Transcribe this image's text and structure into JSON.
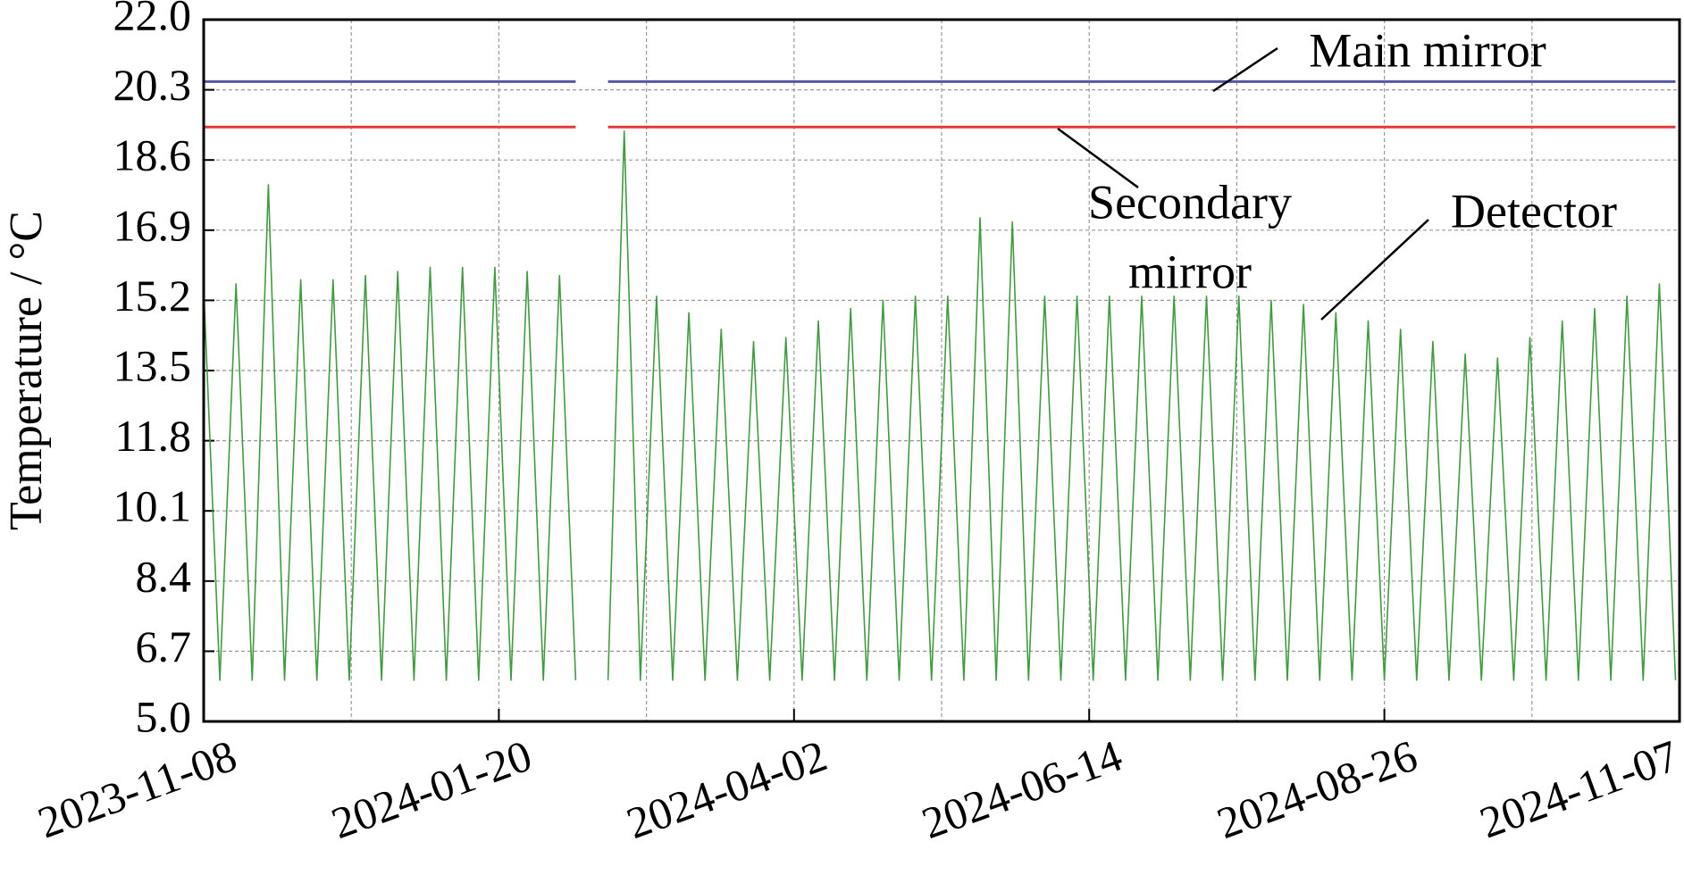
{
  "chart_data": {
    "type": "line",
    "ylabel": "Temperature / °C",
    "x": [
      "2023-11-08",
      "2023-11-12",
      "2023-11-16",
      "2023-11-20",
      "2023-11-24",
      "2023-11-28",
      "2023-12-02",
      "2023-12-06",
      "2023-12-10",
      "2023-12-14",
      "2023-12-18",
      "2023-12-22",
      "2023-12-26",
      "2023-12-30",
      "2024-01-03",
      "2024-01-07",
      "2024-01-11",
      "2024-01-15",
      "2024-01-19",
      "2024-01-23",
      "2024-01-27",
      "2024-01-31",
      "2024-02-04",
      "2024-02-08",
      "2024-02-12",
      "2024-02-16",
      "2024-02-20",
      "2024-02-24",
      "2024-02-28",
      "2024-03-03",
      "2024-03-07",
      "2024-03-11",
      "2024-03-15",
      "2024-03-19",
      "2024-03-23",
      "2024-03-27",
      "2024-03-31",
      "2024-04-04",
      "2024-04-08",
      "2024-04-12",
      "2024-04-16",
      "2024-04-20",
      "2024-04-24",
      "2024-04-28",
      "2024-05-02",
      "2024-05-06",
      "2024-05-10",
      "2024-05-14",
      "2024-05-18",
      "2024-05-22",
      "2024-05-26",
      "2024-05-30",
      "2024-06-03",
      "2024-06-07",
      "2024-06-11",
      "2024-06-15",
      "2024-06-19",
      "2024-06-23",
      "2024-06-27",
      "2024-07-01",
      "2024-07-05",
      "2024-07-09",
      "2024-07-13",
      "2024-07-17",
      "2024-07-21",
      "2024-07-25",
      "2024-07-29",
      "2024-08-02",
      "2024-08-06",
      "2024-08-10",
      "2024-08-14",
      "2024-08-18",
      "2024-08-22",
      "2024-08-26",
      "2024-08-30",
      "2024-09-03",
      "2024-09-07",
      "2024-09-11",
      "2024-09-15",
      "2024-09-19",
      "2024-09-23",
      "2024-09-27",
      "2024-10-01",
      "2024-10-05",
      "2024-10-09",
      "2024-10-13",
      "2024-10-17",
      "2024-10-21",
      "2024-10-25",
      "2024-10-29",
      "2024-11-02",
      "2024-11-06"
    ],
    "series": [
      {
        "name": "Main mirror",
        "color": "#5656a6",
        "values": [
          20.5,
          20.5,
          20.5,
          20.5,
          20.5,
          20.5,
          20.5,
          20.5,
          20.5,
          20.5,
          20.5,
          20.5,
          20.5,
          20.5,
          20.5,
          20.5,
          20.5,
          20.5,
          20.5,
          20.5,
          20.5,
          20.5,
          20.5,
          20.5,
          null,
          20.5,
          20.5,
          20.5,
          20.5,
          20.5,
          20.5,
          20.5,
          20.5,
          20.5,
          20.5,
          20.5,
          20.5,
          20.5,
          20.5,
          20.5,
          20.5,
          20.5,
          20.5,
          20.5,
          20.5,
          20.5,
          20.5,
          20.5,
          20.5,
          20.5,
          20.5,
          20.5,
          20.5,
          20.5,
          20.5,
          20.5,
          20.5,
          20.5,
          20.5,
          20.5,
          20.5,
          20.5,
          20.5,
          20.5,
          20.5,
          20.5,
          20.5,
          20.5,
          20.5,
          20.5,
          20.5,
          20.5,
          20.5,
          20.5,
          20.5,
          20.5,
          20.5,
          20.5,
          20.5,
          20.5,
          20.5,
          20.5,
          20.5,
          20.5,
          20.5,
          20.5,
          20.5,
          20.5,
          20.5,
          20.5,
          20.5,
          20.5
        ]
      },
      {
        "name": "Secondary mirror",
        "color": "#e23a3a",
        "values": [
          19.4,
          19.4,
          19.4,
          19.4,
          19.4,
          19.4,
          19.4,
          19.4,
          19.4,
          19.4,
          19.4,
          19.4,
          19.4,
          19.4,
          19.4,
          19.4,
          19.4,
          19.4,
          19.4,
          19.4,
          19.4,
          19.4,
          19.4,
          19.4,
          null,
          19.4,
          19.4,
          19.4,
          19.4,
          19.4,
          19.4,
          19.4,
          19.4,
          19.4,
          19.4,
          19.4,
          19.4,
          19.4,
          19.4,
          19.4,
          19.4,
          19.4,
          19.4,
          19.4,
          19.4,
          19.4,
          19.4,
          19.4,
          19.4,
          19.4,
          19.4,
          19.4,
          19.4,
          19.4,
          19.4,
          19.4,
          19.4,
          19.4,
          19.4,
          19.4,
          19.4,
          19.4,
          19.4,
          19.4,
          19.4,
          19.4,
          19.4,
          19.4,
          19.4,
          19.4,
          19.4,
          19.4,
          19.4,
          19.4,
          19.4,
          19.4,
          19.4,
          19.4,
          19.4,
          19.4,
          19.4,
          19.4,
          19.4,
          19.4,
          19.4,
          19.4,
          19.4,
          19.4,
          19.4,
          19.4,
          19.4,
          19.4
        ]
      },
      {
        "name": "Detector",
        "color": "#3f9c3f",
        "values": [
          15.5,
          6.0,
          15.6,
          6.0,
          18.0,
          6.0,
          15.7,
          6.0,
          15.7,
          6.0,
          15.8,
          6.0,
          15.9,
          6.0,
          16.0,
          6.0,
          16.0,
          6.0,
          16.0,
          6.0,
          15.9,
          6.0,
          15.8,
          6.0,
          null,
          6.0,
          19.3,
          6.0,
          15.3,
          6.0,
          14.9,
          6.0,
          14.5,
          6.0,
          14.2,
          6.0,
          14.3,
          6.0,
          14.7,
          6.0,
          15.0,
          6.0,
          15.2,
          6.0,
          15.3,
          6.0,
          15.3,
          6.0,
          17.2,
          6.0,
          17.1,
          6.0,
          15.3,
          6.0,
          15.3,
          6.0,
          15.3,
          6.0,
          15.3,
          6.0,
          15.3,
          6.0,
          15.3,
          6.0,
          15.3,
          6.0,
          15.2,
          6.0,
          15.1,
          6.0,
          14.9,
          6.0,
          14.7,
          6.0,
          14.5,
          6.0,
          14.2,
          6.0,
          13.9,
          6.0,
          13.8,
          6.0,
          14.3,
          6.0,
          14.7,
          6.0,
          15.0,
          6.0,
          15.3,
          6.0,
          15.6,
          6.0
        ]
      }
    ],
    "annotations": [
      [
        "Main mirror"
      ],
      [
        "Secondary",
        "mirror"
      ],
      [
        "Detector"
      ]
    ],
    "xlim": [
      "2023-11-08",
      "2024-11-07"
    ],
    "xticks": [
      "2023-11-08",
      "2024-01-20",
      "2024-04-02",
      "2024-06-14",
      "2024-08-26",
      "2024-11-07"
    ],
    "ylim": [
      5,
      22
    ],
    "yticks": [
      {
        "value": 5,
        "label": "5.0"
      },
      6.7,
      8.4,
      10.1,
      11.8,
      13.5,
      15.2,
      16.9,
      18.6,
      20.3,
      {
        "value": 22,
        "label": "22.0"
      }
    ],
    "grid": true
  }
}
